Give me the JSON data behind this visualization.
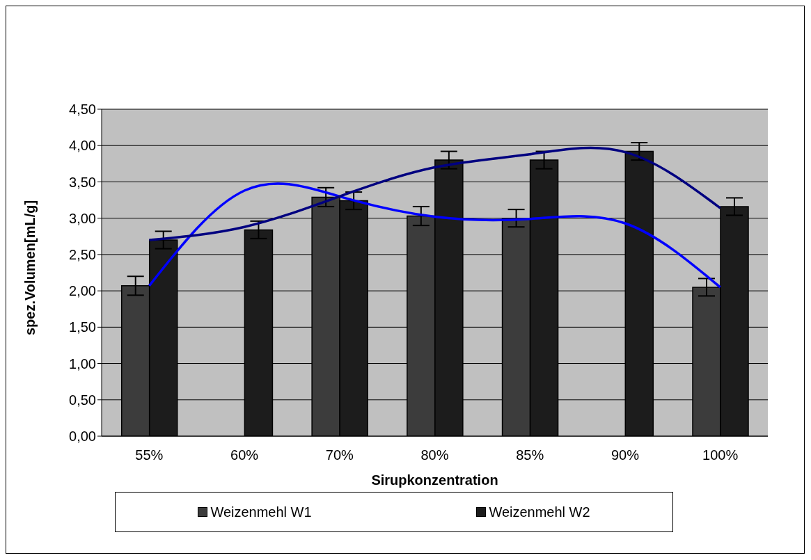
{
  "chart_data": {
    "type": "bar",
    "xlabel": "Sirupkonzentration",
    "ylabel": "spez.Volumen[mL/g]",
    "categories": [
      "55%",
      "60%",
      "70%",
      "80%",
      "85%",
      "90%",
      "100%"
    ],
    "series": [
      {
        "name": "Weizenmehl W1",
        "color": "#3c3c3c",
        "values": [
          2.07,
          null,
          3.29,
          3.03,
          3.0,
          null,
          2.05
        ],
        "errors": [
          0.13,
          null,
          0.13,
          0.13,
          0.12,
          null,
          0.12
        ]
      },
      {
        "name": "Weizenmehl W2",
        "color": "#1c1c1c",
        "values": [
          2.7,
          2.84,
          3.24,
          3.8,
          3.8,
          3.92,
          3.16
        ],
        "errors": [
          0.12,
          0.12,
          0.12,
          0.12,
          0.12,
          0.12,
          0.12
        ]
      },
      {
        "type": "line",
        "color": "#0000ff",
        "values": [
          2.07,
          3.38,
          3.3,
          3.02,
          2.99,
          2.93,
          2.05
        ]
      },
      {
        "type": "line",
        "color": "#000080",
        "values": [
          2.7,
          2.88,
          3.3,
          3.7,
          3.88,
          3.91,
          3.14
        ]
      }
    ],
    "ylim": [
      0,
      4.5
    ],
    "yticks": [
      {
        "value": 0,
        "label": "0,00"
      },
      {
        "value": 0.5,
        "label": "0,50"
      },
      {
        "value": 1,
        "label": "1,00"
      },
      {
        "value": 1.5,
        "label": "1,50"
      },
      {
        "value": 2,
        "label": "2,00"
      },
      {
        "value": 2.5,
        "label": "2,50"
      },
      {
        "value": 3,
        "label": "3,00"
      },
      {
        "value": 3.5,
        "label": "3,50"
      },
      {
        "value": 4,
        "label": "4,00"
      },
      {
        "value": 4.5,
        "label": "4,50"
      }
    ],
    "grid": "y",
    "legend": "bottom"
  }
}
